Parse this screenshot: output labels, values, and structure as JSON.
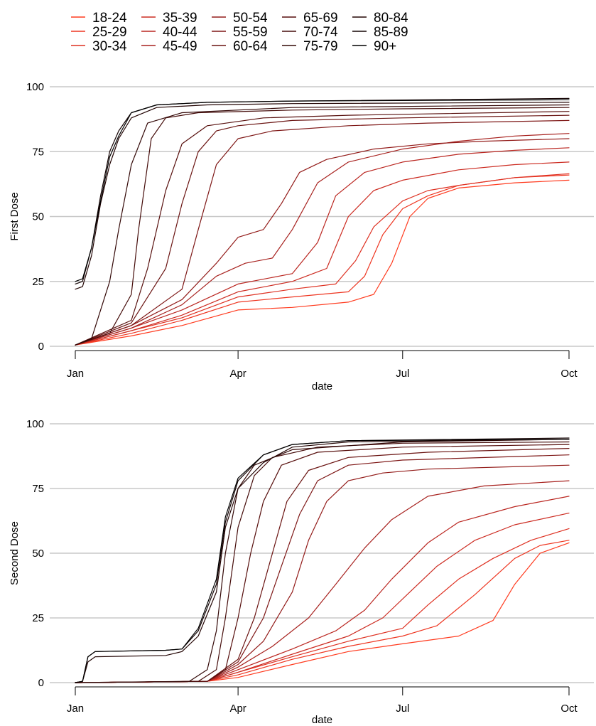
{
  "chart_data": [
    {
      "type": "line",
      "ylabel": "First Dose",
      "xlabel": "date",
      "ylim": [
        0,
        100
      ],
      "y_ticks": [
        0,
        25,
        50,
        75,
        100
      ],
      "x_ticks": [
        "Jan",
        "Apr",
        "Jul",
        "Oct"
      ],
      "grid": "horizontal",
      "series": [
        {
          "name": "18-24",
          "x": [
            "2021-01-01",
            "2021-02-01",
            "2021-03-01",
            "2021-04-01",
            "2021-05-01",
            "2021-06-01",
            "2021-06-15",
            "2021-06-25",
            "2021-07-05",
            "2021-07-15",
            "2021-08-01",
            "2021-09-01",
            "2021-10-01"
          ],
          "y": [
            0.5,
            4,
            8,
            14,
            15,
            17,
            20,
            32,
            50,
            57,
            61,
            63,
            64
          ]
        },
        {
          "name": "25-29",
          "x": [
            "2021-01-01",
            "2021-02-01",
            "2021-03-01",
            "2021-04-01",
            "2021-05-01",
            "2021-06-01",
            "2021-06-10",
            "2021-06-20",
            "2021-07-01",
            "2021-07-15",
            "2021-08-01",
            "2021-09-01",
            "2021-10-01"
          ],
          "y": [
            0.5,
            5,
            10,
            17,
            19,
            21,
            27,
            43,
            53,
            58,
            62,
            65,
            66
          ]
        },
        {
          "name": "30-34",
          "x": [
            "2021-01-01",
            "2021-02-01",
            "2021-03-01",
            "2021-04-01",
            "2021-05-01",
            "2021-05-25",
            "2021-06-05",
            "2021-06-15",
            "2021-07-01",
            "2021-07-15",
            "2021-08-01",
            "2021-09-01",
            "2021-10-01"
          ],
          "y": [
            0.5,
            6,
            11,
            19,
            22,
            24,
            33,
            46,
            56,
            60,
            62,
            65,
            66.5
          ]
        },
        {
          "name": "35-39",
          "x": [
            "2021-01-01",
            "2021-02-01",
            "2021-03-01",
            "2021-04-01",
            "2021-05-01",
            "2021-05-20",
            "2021-06-01",
            "2021-06-15",
            "2021-07-01",
            "2021-08-01",
            "2021-09-01",
            "2021-10-01"
          ],
          "y": [
            0.5,
            6,
            12,
            21,
            25,
            30,
            50,
            60,
            64,
            68,
            70,
            71
          ]
        },
        {
          "name": "40-44",
          "x": [
            "2021-01-01",
            "2021-02-01",
            "2021-03-01",
            "2021-04-01",
            "2021-05-01",
            "2021-05-15",
            "2021-05-25",
            "2021-06-10",
            "2021-07-01",
            "2021-08-01",
            "2021-09-01",
            "2021-10-01"
          ],
          "y": [
            0.5,
            7,
            14,
            24,
            28,
            40,
            58,
            67,
            71,
            74,
            75.5,
            76.5
          ]
        },
        {
          "name": "45-49",
          "x": [
            "2021-01-01",
            "2021-02-01",
            "2021-03-01",
            "2021-03-20",
            "2021-04-05",
            "2021-04-20",
            "2021-05-01",
            "2021-05-15",
            "2021-06-01",
            "2021-07-01",
            "2021-08-01",
            "2021-09-01",
            "2021-10-01"
          ],
          "y": [
            0.5,
            7,
            16,
            27,
            32,
            34,
            45,
            63,
            71,
            76,
            79,
            81,
            82
          ]
        },
        {
          "name": "50-54",
          "x": [
            "2021-01-01",
            "2021-02-01",
            "2021-03-01",
            "2021-03-20",
            "2021-04-01",
            "2021-04-15",
            "2021-04-25",
            "2021-05-05",
            "2021-05-20",
            "2021-06-15",
            "2021-07-15",
            "2021-08-15",
            "2021-10-01"
          ],
          "y": [
            0.5,
            8,
            18,
            32,
            42,
            45,
            55,
            67,
            72,
            76,
            78,
            79,
            80
          ]
        },
        {
          "name": "55-59",
          "x": [
            "2021-01-01",
            "2021-02-01",
            "2021-03-01",
            "2021-03-10",
            "2021-03-20",
            "2021-04-01",
            "2021-04-20",
            "2021-06-01",
            "2021-07-15",
            "2021-10-01"
          ],
          "y": [
            0.5,
            8,
            22,
            45,
            70,
            80,
            83,
            85,
            86,
            87
          ]
        },
        {
          "name": "60-64",
          "x": [
            "2021-01-01",
            "2021-02-01",
            "2021-02-20",
            "2021-03-01",
            "2021-03-10",
            "2021-03-20",
            "2021-04-01",
            "2021-05-01",
            "2021-07-01",
            "2021-10-01"
          ],
          "y": [
            0.5,
            9,
            30,
            55,
            75,
            83,
            85,
            87,
            88,
            89
          ]
        },
        {
          "name": "65-69",
          "x": [
            "2021-01-01",
            "2021-02-01",
            "2021-02-10",
            "2021-02-20",
            "2021-03-01",
            "2021-03-15",
            "2021-04-15",
            "2021-06-01",
            "2021-10-01"
          ],
          "y": [
            0.5,
            10,
            30,
            60,
            78,
            85,
            88,
            89,
            90.5
          ]
        },
        {
          "name": "70-74",
          "x": [
            "2021-01-01",
            "2021-01-20",
            "2021-02-01",
            "2021-02-05",
            "2021-02-12",
            "2021-02-20",
            "2021-03-10",
            "2021-05-01",
            "2021-07-01",
            "2021-10-01"
          ],
          "y": [
            0.5,
            5,
            20,
            45,
            80,
            88,
            90,
            91,
            91.5,
            92
          ]
        },
        {
          "name": "75-79",
          "x": [
            "2021-01-01",
            "2021-01-10",
            "2021-01-20",
            "2021-01-25",
            "2021-02-01",
            "2021-02-10",
            "2021-03-01",
            "2021-05-01",
            "2021-10-01"
          ],
          "y": [
            0.5,
            3,
            25,
            45,
            70,
            86,
            90,
            92,
            93
          ]
        },
        {
          "name": "80-84",
          "x": [
            "2021-01-01",
            "2021-01-05",
            "2021-01-10",
            "2021-01-15",
            "2021-01-20",
            "2021-01-25",
            "2021-02-01",
            "2021-02-15",
            "2021-03-15",
            "2021-05-01",
            "2021-10-01"
          ],
          "y": [
            22,
            23,
            35,
            55,
            70,
            80,
            88,
            92,
            93,
            93.5,
            94
          ]
        },
        {
          "name": "85-89",
          "x": [
            "2021-01-01",
            "2021-01-05",
            "2021-01-10",
            "2021-01-15",
            "2021-01-20",
            "2021-01-25",
            "2021-02-01",
            "2021-02-15",
            "2021-03-15",
            "2021-05-01",
            "2021-10-01"
          ],
          "y": [
            24,
            25,
            38,
            58,
            75,
            83,
            90,
            93,
            94,
            94.5,
            95.5
          ]
        },
        {
          "name": "90+",
          "x": [
            "2021-01-01",
            "2021-01-05",
            "2021-01-10",
            "2021-01-15",
            "2021-01-20",
            "2021-01-25",
            "2021-02-01",
            "2021-02-15",
            "2021-03-15",
            "2021-05-01",
            "2021-10-01"
          ],
          "y": [
            25,
            26,
            38,
            56,
            73,
            81,
            90,
            93,
            94,
            94.5,
            95
          ]
        }
      ]
    },
    {
      "type": "line",
      "ylabel": "Second Dose",
      "xlabel": "date",
      "ylim": [
        0,
        100
      ],
      "y_ticks": [
        0,
        25,
        50,
        75,
        100
      ],
      "x_ticks": [
        "Jan",
        "Apr",
        "Jul",
        "Oct"
      ],
      "grid": "horizontal",
      "series": [
        {
          "name": "18-24",
          "x": [
            "2021-01-01",
            "2021-03-15",
            "2021-04-01",
            "2021-05-01",
            "2021-06-01",
            "2021-07-01",
            "2021-08-01",
            "2021-08-20",
            "2021-09-01",
            "2021-09-15",
            "2021-10-01"
          ],
          "y": [
            0,
            0.5,
            2,
            7,
            12,
            15,
            18,
            24,
            38,
            50,
            54
          ]
        },
        {
          "name": "25-29",
          "x": [
            "2021-01-01",
            "2021-03-15",
            "2021-04-01",
            "2021-05-01",
            "2021-06-01",
            "2021-07-01",
            "2021-07-20",
            "2021-08-10",
            "2021-09-01",
            "2021-09-15",
            "2021-10-01"
          ],
          "y": [
            0,
            0.5,
            3,
            9,
            14,
            18,
            22,
            34,
            48,
            53,
            55
          ]
        },
        {
          "name": "30-34",
          "x": [
            "2021-01-01",
            "2021-03-15",
            "2021-04-01",
            "2021-05-01",
            "2021-06-01",
            "2021-07-01",
            "2021-07-15",
            "2021-08-01",
            "2021-08-20",
            "2021-09-10",
            "2021-10-01"
          ],
          "y": [
            0,
            0.5,
            4,
            10,
            16,
            21,
            30,
            40,
            48,
            55,
            59.5
          ]
        },
        {
          "name": "35-39",
          "x": [
            "2021-01-01",
            "2021-03-15",
            "2021-04-01",
            "2021-05-01",
            "2021-06-01",
            "2021-06-20",
            "2021-07-05",
            "2021-07-20",
            "2021-08-10",
            "2021-09-01",
            "2021-10-01"
          ],
          "y": [
            0,
            0.5,
            4,
            11,
            18,
            25,
            35,
            45,
            55,
            61,
            65.5
          ]
        },
        {
          "name": "40-44",
          "x": [
            "2021-01-01",
            "2021-03-15",
            "2021-04-01",
            "2021-05-01",
            "2021-05-25",
            "2021-06-10",
            "2021-06-25",
            "2021-07-15",
            "2021-08-01",
            "2021-09-01",
            "2021-10-01"
          ],
          "y": [
            0,
            0.5,
            5,
            13,
            20,
            28,
            40,
            54,
            62,
            68,
            72
          ]
        },
        {
          "name": "45-49",
          "x": [
            "2021-01-01",
            "2021-03-15",
            "2021-04-01",
            "2021-04-20",
            "2021-05-10",
            "2021-05-25",
            "2021-06-10",
            "2021-06-25",
            "2021-07-15",
            "2021-08-15",
            "2021-10-01"
          ],
          "y": [
            0,
            0.5,
            6,
            14,
            25,
            38,
            52,
            63,
            72,
            76,
            78
          ]
        },
        {
          "name": "50-54",
          "x": [
            "2021-01-01",
            "2021-03-15",
            "2021-04-01",
            "2021-04-15",
            "2021-05-01",
            "2021-05-10",
            "2021-05-20",
            "2021-06-01",
            "2021-06-20",
            "2021-07-15",
            "2021-10-01"
          ],
          "y": [
            0,
            0.5,
            7,
            16,
            35,
            55,
            70,
            78,
            81,
            82.5,
            84
          ]
        },
        {
          "name": "55-59",
          "x": [
            "2021-01-01",
            "2021-03-15",
            "2021-04-01",
            "2021-04-15",
            "2021-04-25",
            "2021-05-05",
            "2021-05-15",
            "2021-06-01",
            "2021-07-01",
            "2021-10-01"
          ],
          "y": [
            0,
            0.5,
            8,
            25,
            45,
            65,
            78,
            84,
            86,
            88
          ]
        },
        {
          "name": "60-64",
          "x": [
            "2021-01-01",
            "2021-03-15",
            "2021-04-01",
            "2021-04-10",
            "2021-04-20",
            "2021-04-28",
            "2021-05-10",
            "2021-06-01",
            "2021-07-15",
            "2021-10-01"
          ],
          "y": [
            0,
            0.5,
            9,
            25,
            50,
            70,
            82,
            87,
            89,
            90.5
          ]
        },
        {
          "name": "65-69",
          "x": [
            "2021-01-01",
            "2021-03-15",
            "2021-03-25",
            "2021-04-01",
            "2021-04-08",
            "2021-04-15",
            "2021-04-25",
            "2021-05-15",
            "2021-07-01",
            "2021-10-01"
          ],
          "y": [
            0,
            0.5,
            5,
            25,
            50,
            70,
            84,
            89,
            91,
            92
          ]
        },
        {
          "name": "70-74",
          "x": [
            "2021-01-01",
            "2021-03-10",
            "2021-03-20",
            "2021-03-25",
            "2021-04-01",
            "2021-04-10",
            "2021-04-20",
            "2021-05-15",
            "2021-07-01",
            "2021-10-01"
          ],
          "y": [
            0,
            0.5,
            5,
            25,
            60,
            80,
            87,
            91,
            92.5,
            93
          ]
        },
        {
          "name": "75-79",
          "x": [
            "2021-01-01",
            "2021-03-05",
            "2021-03-15",
            "2021-03-20",
            "2021-03-25",
            "2021-04-01",
            "2021-04-10",
            "2021-05-01",
            "2021-07-01",
            "2021-10-01"
          ],
          "y": [
            0,
            0.5,
            5,
            20,
            50,
            75,
            84,
            90,
            93,
            94
          ]
        },
        {
          "name": "80-84",
          "x": [
            "2021-01-01",
            "2021-01-05",
            "2021-01-08",
            "2021-01-12",
            "2021-02-20",
            "2021-03-01",
            "2021-03-10",
            "2021-03-20",
            "2021-03-25",
            "2021-04-01",
            "2021-04-15",
            "2021-05-01",
            "2021-06-01",
            "2021-10-01"
          ],
          "y": [
            0,
            0.5,
            8,
            10,
            10.5,
            12,
            18,
            35,
            60,
            75,
            85,
            91,
            93,
            94
          ]
        },
        {
          "name": "85-89",
          "x": [
            "2021-01-01",
            "2021-01-05",
            "2021-01-08",
            "2021-01-12",
            "2021-02-20",
            "2021-03-01",
            "2021-03-10",
            "2021-03-20",
            "2021-03-25",
            "2021-04-01",
            "2021-04-15",
            "2021-05-01",
            "2021-06-01",
            "2021-10-01"
          ],
          "y": [
            0,
            0.5,
            10,
            12,
            12.5,
            13,
            20,
            38,
            62,
            78,
            88,
            92,
            93.5,
            94.5
          ]
        },
        {
          "name": "90+",
          "x": [
            "2021-01-01",
            "2021-01-05",
            "2021-01-08",
            "2021-01-12",
            "2021-02-20",
            "2021-03-01",
            "2021-03-10",
            "2021-03-20",
            "2021-03-25",
            "2021-04-01",
            "2021-04-15",
            "2021-05-01",
            "2021-06-01",
            "2021-10-01"
          ],
          "y": [
            0,
            0.5,
            10,
            12,
            12.5,
            13,
            21,
            40,
            64,
            79,
            88,
            92,
            93.5,
            94
          ]
        }
      ]
    }
  ],
  "legend": {
    "placement": "top",
    "colors": [
      "#ff3b1f",
      "#ee3520",
      "#de3021",
      "#cc2b21",
      "#ba2620",
      "#a7211e",
      "#931c1a",
      "#7e1716",
      "#6a1311",
      "#570f0d",
      "#450c0a",
      "#330807",
      "#230504",
      "#140303",
      "#000000"
    ]
  }
}
